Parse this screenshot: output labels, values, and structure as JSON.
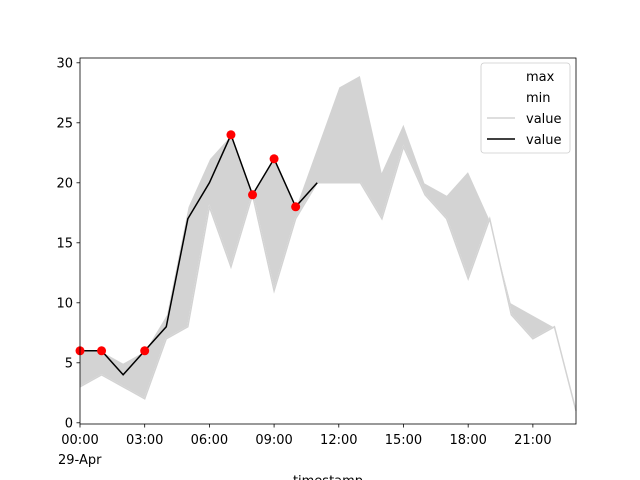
{
  "chart_data": {
    "type": "line",
    "x": [
      0,
      1,
      2,
      3,
      4,
      5,
      6,
      7,
      8,
      9,
      10,
      11,
      12,
      13,
      14,
      15,
      16,
      17,
      18,
      19,
      20,
      21,
      22,
      23
    ],
    "xlim": [
      0,
      23
    ],
    "xticks": [
      {
        "value": 0,
        "label": "00:00"
      },
      {
        "value": 3,
        "label": "03:00"
      },
      {
        "value": 6,
        "label": "06:00"
      },
      {
        "value": 9,
        "label": "09:00"
      },
      {
        "value": 12,
        "label": "12:00"
      },
      {
        "value": 15,
        "label": "15:00"
      },
      {
        "value": 18,
        "label": "18:00"
      },
      {
        "value": 21,
        "label": "21:00"
      }
    ],
    "date_label": "29-Apr",
    "xlabel": "timestamp",
    "ylim": [
      -0.1,
      30.4
    ],
    "yticks": [
      0,
      5,
      10,
      15,
      20,
      25,
      30
    ],
    "band_color": "#d3d3d3",
    "legend": "upper right",
    "series": [
      {
        "name": "max",
        "color": "#ffffff",
        "values": [
          6,
          6,
          5,
          6,
          9,
          18,
          22,
          24,
          19,
          22,
          18,
          23,
          28,
          29,
          21,
          25,
          20,
          19,
          21,
          17,
          10,
          9,
          8,
          1
        ]
      },
      {
        "name": "min",
        "color": "#ffffff",
        "values": [
          3,
          4,
          3,
          2,
          7,
          8,
          18,
          13,
          19,
          11,
          17,
          20,
          20,
          20,
          17,
          23,
          19,
          17,
          12,
          17,
          9,
          7,
          8,
          1
        ]
      },
      {
        "name": "value",
        "color": "#d3d3d3",
        "values": [
          3,
          4,
          3,
          2,
          7,
          8,
          18,
          13,
          19,
          11,
          17,
          20,
          20,
          20,
          17,
          23,
          19,
          17,
          12,
          17,
          9,
          7,
          8,
          1
        ]
      },
      {
        "name": "value",
        "color": "#000000",
        "values": [
          6,
          6,
          4,
          6,
          8,
          17,
          20,
          24,
          19,
          22,
          18,
          20,
          null,
          null,
          null,
          null,
          null,
          null,
          null,
          null,
          null,
          null,
          null,
          null
        ]
      },
      {
        "color": "#ff0000",
        "marker": true,
        "values": [
          6,
          6,
          null,
          6,
          null,
          null,
          null,
          24,
          19,
          22,
          18,
          null,
          null,
          null,
          null,
          null,
          null,
          null,
          null,
          null,
          null,
          null,
          null,
          null
        ]
      }
    ]
  }
}
